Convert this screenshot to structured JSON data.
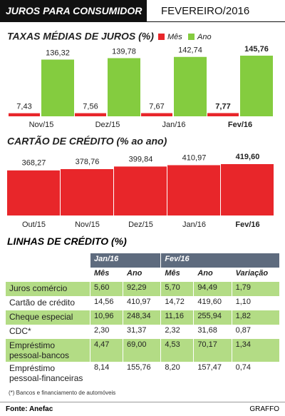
{
  "header": {
    "title": "JUROS PARA CONSUMIDOR",
    "date": "FEVEREIRO/2016"
  },
  "chart_data": [
    {
      "type": "bar",
      "title": "TAXAS MÉDIAS DE JUROS (%)",
      "categories": [
        "Nov/15",
        "Dez/15",
        "Jan/16",
        "Fev/16"
      ],
      "series": [
        {
          "name": "Mês",
          "color": "#e8262a",
          "values": [
            7.43,
            7.56,
            7.67,
            7.77
          ],
          "value_labels": [
            "7,43",
            "7,56",
            "7,67",
            "7,77"
          ]
        },
        {
          "name": "Ano",
          "color": "#84cc3f",
          "values": [
            136.32,
            139.78,
            142.74,
            145.76
          ],
          "value_labels": [
            "136,32",
            "139,78",
            "142,74",
            "145,76"
          ]
        }
      ],
      "legend": "top"
    },
    {
      "type": "bar",
      "title": "CARTÃO DE CRÉDITO (% ao ano)",
      "categories": [
        "Out/15",
        "Nov/15",
        "Dez/15",
        "Jan/16",
        "Fev/16"
      ],
      "values": [
        368.27,
        378.76,
        399.84,
        410.97,
        419.6
      ],
      "value_labels": [
        "368,27",
        "378,76",
        "399,84",
        "410,97",
        "419,60"
      ],
      "color": "#e8262a"
    }
  ],
  "table": {
    "title": "LINHAS DE CRÉDITO (%)",
    "group_headers": [
      "Jan/16",
      "Fev/16"
    ],
    "columns": [
      "Mês",
      "Ano",
      "Mês",
      "Ano",
      "Variação"
    ],
    "rows": [
      [
        "Juros comércio",
        "5,60",
        "92,29",
        "5,70",
        "94,49",
        "1,79"
      ],
      [
        "Cartão de crédito",
        "14,56",
        "410,97",
        "14,72",
        "419,60",
        "1,10"
      ],
      [
        "Cheque especial",
        "10,96",
        "248,34",
        "11,16",
        "255,94",
        "1,82"
      ],
      [
        "CDC*",
        "2,30",
        "31,37",
        "2,32",
        "31,68",
        "0,87"
      ],
      [
        "Empréstimo pessoal-bancos",
        "4,47",
        "69,00",
        "4,53",
        "70,17",
        "1,34"
      ],
      [
        "Empréstimo pessoal-financeiras",
        "8,14",
        "155,76",
        "8,20",
        "157,47",
        "0,74"
      ]
    ]
  },
  "footnote": "(*) Bancos e financiamento de automóveis",
  "source": "Fonte: Anefac",
  "credit": "GRAFFO"
}
